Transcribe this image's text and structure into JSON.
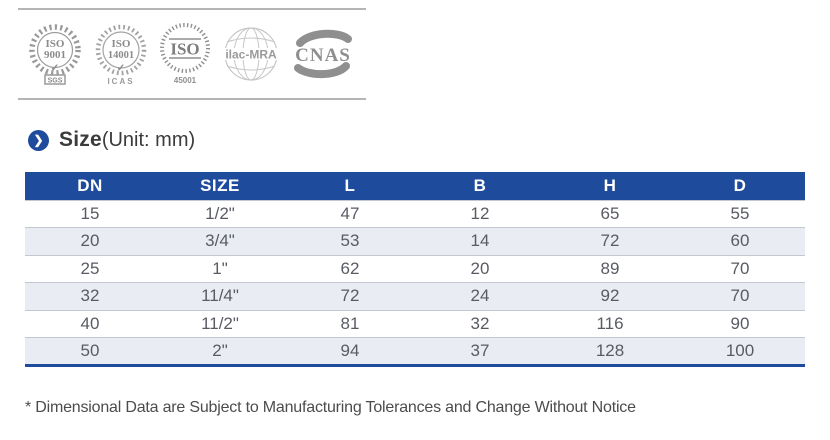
{
  "colors": {
    "header_bg": "#1e4b9c",
    "row_alt_bg": "#e9edf3",
    "accent_blue": "#1e4b9c",
    "rule_gray": "#b4b4b4",
    "cell_text": "#585b63",
    "logo_gray": "#949494"
  },
  "certifications": {
    "logos": [
      {
        "id": "iso-9001",
        "line1": "ISO",
        "line2": "9001",
        "check": "✓",
        "sub": "SGS"
      },
      {
        "id": "iso-14001",
        "line1": "ISO",
        "line2": "14001",
        "check": "✓",
        "sub": "ICAS"
      },
      {
        "id": "iso-45001",
        "line1": "ISO",
        "line2": "45001"
      },
      {
        "id": "ilac-mra",
        "label": "ilac-MRA"
      },
      {
        "id": "cnas",
        "label": "CNAS"
      }
    ]
  },
  "section": {
    "chevron": "❯",
    "title_bold": "Size",
    "title_normal": "(Unit: mm)"
  },
  "table": {
    "headers": [
      "DN",
      "SIZE",
      "L",
      "B",
      "H",
      "D"
    ],
    "rows": [
      [
        "15",
        "1/2\"",
        "47",
        "12",
        "65",
        "55"
      ],
      [
        "20",
        "3/4\"",
        "53",
        "14",
        "72",
        "60"
      ],
      [
        "25",
        "1\"",
        "62",
        "20",
        "89",
        "70"
      ],
      [
        "32",
        "11/4\"",
        "72",
        "24",
        "92",
        "70"
      ],
      [
        "40",
        "11/2\"",
        "81",
        "32",
        "116",
        "90"
      ],
      [
        "50",
        "2\"",
        "94",
        "37",
        "128",
        "100"
      ]
    ]
  },
  "footnote": "* Dimensional Data are Subject to Manufacturing Tolerances and Change Without Notice"
}
